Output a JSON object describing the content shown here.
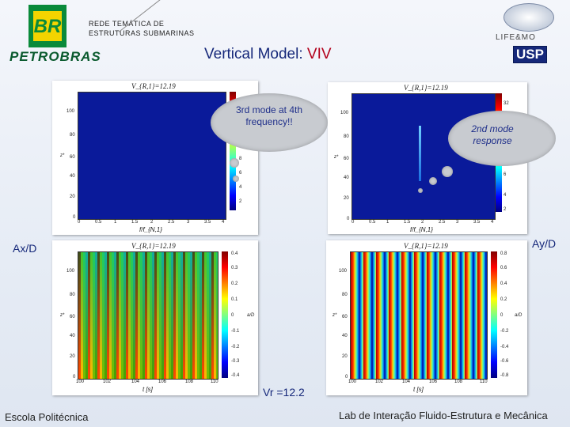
{
  "header": {
    "network_line1": "REDE TEMÁTICA DE",
    "network_line2": "ESTRUTURAS SUBMARINAS",
    "title_main": "Vertical Model: ",
    "title_accent": "VIV",
    "petrobras_logo_text": "BR",
    "petrobras_text": "PETROBRAS",
    "life_text": "LIFE&MO",
    "usp_text": "USP"
  },
  "colors": {
    "title": "#16287a",
    "accent": "#b3001b",
    "bubble_text": "#1f2f8a"
  },
  "plots": {
    "top_left": {
      "head": "V_{R,1}=12.19",
      "xlabel": "f/f_{N,1}",
      "ylabel": "z*",
      "xticks": [
        "0",
        "0.5",
        "1",
        "1.5",
        "2",
        "2.5",
        "3",
        "3.5",
        "4"
      ],
      "yticks": [
        "100",
        "80",
        "60",
        "40",
        "20",
        "0"
      ],
      "cticks": [
        "",
        "",
        "",
        "8",
        "6",
        "4",
        "2"
      ]
    },
    "top_right": {
      "head": "V_{R,1}=12.19",
      "xlabel": "f/f_{N,1}",
      "ylabel": "z*",
      "xticks": [
        "0",
        "0.5",
        "1",
        "1.5",
        "2",
        "2.5",
        "3",
        "3.5",
        "4"
      ],
      "yticks": [
        "100",
        "80",
        "60",
        "40",
        "20",
        "0"
      ],
      "cticks": [
        "32",
        "",
        "",
        "",
        "8",
        "6",
        "4",
        "2"
      ]
    },
    "bottom_left": {
      "head": "V_{R,1}=12.19",
      "xlabel": "t [s]",
      "ylabel": "z*",
      "xticks": [
        "100",
        "102",
        "104",
        "106",
        "108",
        "110"
      ],
      "yticks": [
        "100",
        "80",
        "60",
        "40",
        "20",
        "0"
      ],
      "cticks": [
        "0.4",
        "0.3",
        "0.2",
        "0.1",
        "0",
        "-0.1",
        "-0.2",
        "-0.3",
        "-0.4"
      ],
      "cbar_label": "a/D"
    },
    "bottom_right": {
      "head": "V_{R,1}=12.19",
      "xlabel": "t [s]",
      "ylabel": "z*",
      "xticks": [
        "100",
        "102",
        "104",
        "106",
        "108",
        "110"
      ],
      "yticks": [
        "100",
        "80",
        "60",
        "40",
        "20",
        "0"
      ],
      "cticks": [
        "0.8",
        "0.6",
        "0.4",
        "0.2",
        "0",
        "-0.2",
        "-0.4",
        "-0.6",
        "-0.8"
      ],
      "cbar_label": "a/D"
    }
  },
  "callouts": {
    "left": "3rd mode at 4th frequency!!",
    "right": "2nd mode response"
  },
  "labels": {
    "ax": "Ax/D",
    "ay": "Ay/D",
    "vr": "Vr =12.2"
  },
  "footer": {
    "left": "Escola Politécnica",
    "right": "Lab de Interação Fluido-Estrutura e Mecânica"
  }
}
